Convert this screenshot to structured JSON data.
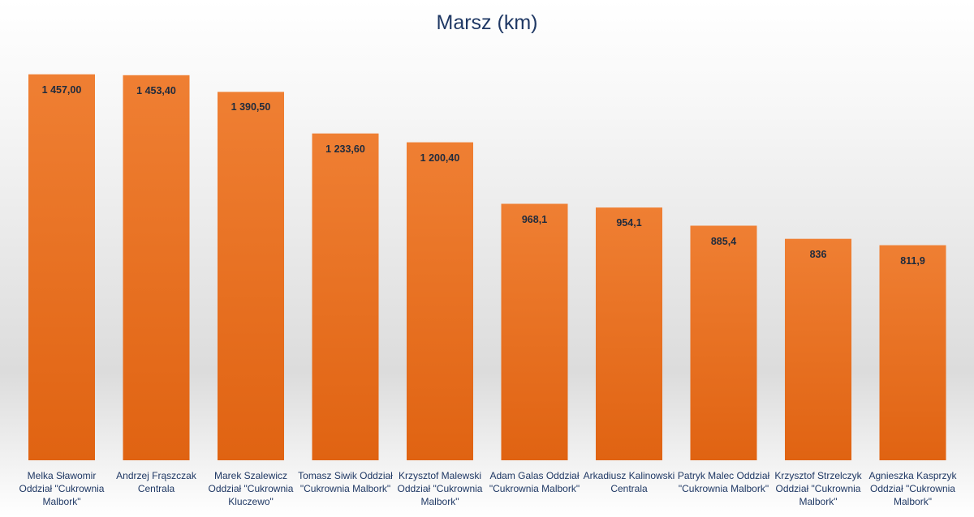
{
  "chart_data": {
    "type": "bar",
    "title": "Marsz (km)",
    "xlabel": "",
    "ylabel": "",
    "ylim": [
      0,
      1560
    ],
    "grid": false,
    "legend": "none",
    "bar_color": "#ed7d31",
    "bar_color_dark": "#e26a12",
    "categories": [
      "Melka Sławomir Oddział \"Cukrownia Malbork\"",
      "Andrzej Frąszczak Centrala",
      "Marek Szalewicz Oddział \"Cukrownia Kluczewo\"",
      "Tomasz Siwik Oddział \"Cukrownia Malbork\"",
      "Krzysztof Malewski Oddział \"Cukrownia Malbork\"",
      "Adam Galas Oddział \"Cukrownia Malbork\"",
      "Arkadiusz Kalinowski Centrala",
      "Patryk Malec Oddział \"Cukrownia Malbork\"",
      "Krzysztof Strzelczyk Oddział \"Cukrownia Malbork\"",
      "Agnieszka Kasprzyk Oddział \"Cukrownia Malbork\""
    ],
    "values": [
      1457.0,
      1453.4,
      1390.5,
      1233.6,
      1200.4,
      968.1,
      954.1,
      885.4,
      836,
      811.9
    ],
    "data_labels": [
      "1 457,00",
      "1 453,40",
      "1 390,50",
      "1 233,60",
      "1 200,40",
      "968,1",
      "954,1",
      "885,4",
      "836",
      "811,9"
    ]
  }
}
